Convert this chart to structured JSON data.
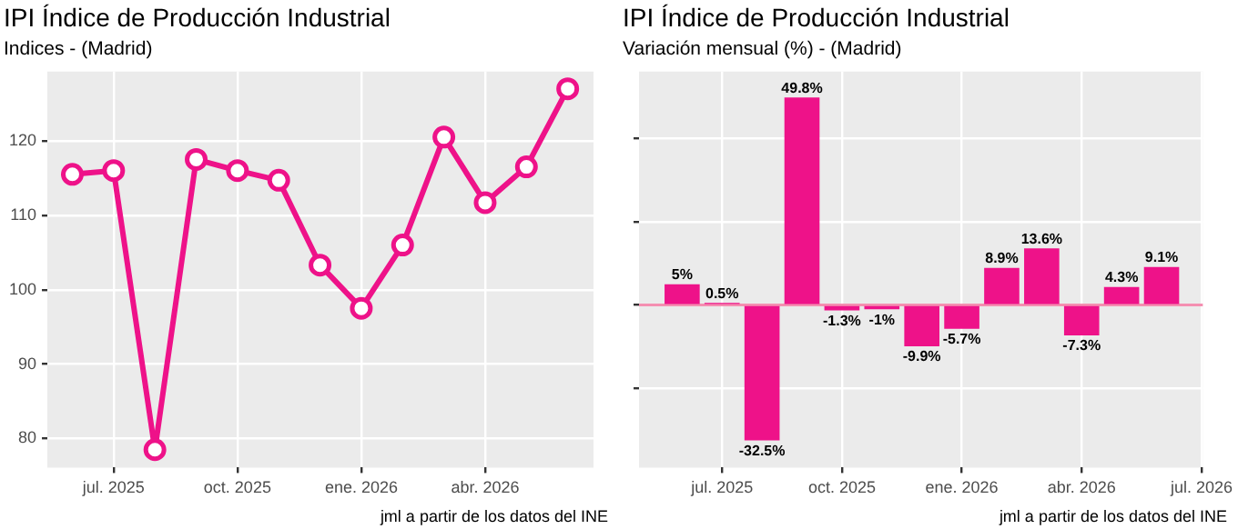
{
  "chart_data": [
    {
      "type": "line",
      "title": "IPI Índice de Producción Industrial",
      "subtitle": "Indices - (Madrid)",
      "x": [
        "2025-06",
        "2025-07",
        "2025-08",
        "2025-09",
        "2025-10",
        "2025-11",
        "2025-12",
        "2026-01",
        "2026-02",
        "2026-03",
        "2026-04",
        "2026-05",
        "2026-06"
      ],
      "values": [
        115.5,
        116,
        78.5,
        117.5,
        116,
        114.7,
        103.3,
        97.5,
        106,
        120.5,
        111.7,
        116.5,
        127
      ],
      "color": "#ee1289",
      "marker": "circle",
      "xlim": [
        "2025-05-13",
        "2026-06-20"
      ],
      "xticks": [
        {
          "value": "2025-07",
          "label": "jul. 2025"
        },
        {
          "value": "2025-10",
          "label": "oct. 2025"
        },
        {
          "value": "2026-01",
          "label": "ene. 2026"
        },
        {
          "value": "2026-04",
          "label": "abr. 2026"
        }
      ],
      "ylim": [
        76.1,
        129.3
      ],
      "yticks": [
        80,
        90,
        100,
        110,
        120
      ],
      "grid": true,
      "annotations": [
        "jml a partir de los datos del INE"
      ]
    },
    {
      "type": "bar",
      "title": "IPI Índice de Producción Industrial",
      "subtitle": "Variación mensual (%) - (Madrid)",
      "x": [
        "2025-06",
        "2025-07",
        "2025-08",
        "2025-09",
        "2025-10",
        "2025-11",
        "2025-12",
        "2026-01",
        "2026-02",
        "2026-03",
        "2026-04",
        "2026-05",
        "2026-06"
      ],
      "values": [
        5,
        0.5,
        -32.5,
        49.8,
        -1.3,
        -1,
        -9.9,
        -5.7,
        8.9,
        13.6,
        -7.3,
        4.3,
        9.1
      ],
      "value_labels": [
        "5%",
        "0.5%",
        "-32.5%",
        "49.8%",
        "-1.3%",
        "-1%",
        "-9.9%",
        "-5.7%",
        "8.9%",
        "13.6%",
        "-7.3%",
        "4.3%",
        "9.1%"
      ],
      "color": "#ee1289",
      "xlim": [
        "2025-04-29",
        "2026-07-02"
      ],
      "xticks": [
        {
          "value": "2025-07",
          "label": "jul. 2025"
        },
        {
          "value": "2025-10",
          "label": "oct. 2025"
        },
        {
          "value": "2026-01",
          "label": "ene. 2026"
        },
        {
          "value": "2026-04",
          "label": "abr. 2026"
        },
        {
          "value": "2026-07",
          "label": "jul. 2026"
        }
      ],
      "ylim": [
        -39,
        56
      ],
      "yticks": [
        {
          "value": -20,
          "label": null
        },
        {
          "value": 0,
          "label": null
        },
        {
          "value": 20,
          "label": null
        },
        {
          "value": 40,
          "label": null
        }
      ],
      "tick_labels": "x",
      "grid": true,
      "ref_lines": [
        {
          "axis": "y",
          "value": 0,
          "color": "#f48fb1"
        }
      ],
      "annotations": [
        "jml a partir de los datos del INE"
      ]
    }
  ]
}
